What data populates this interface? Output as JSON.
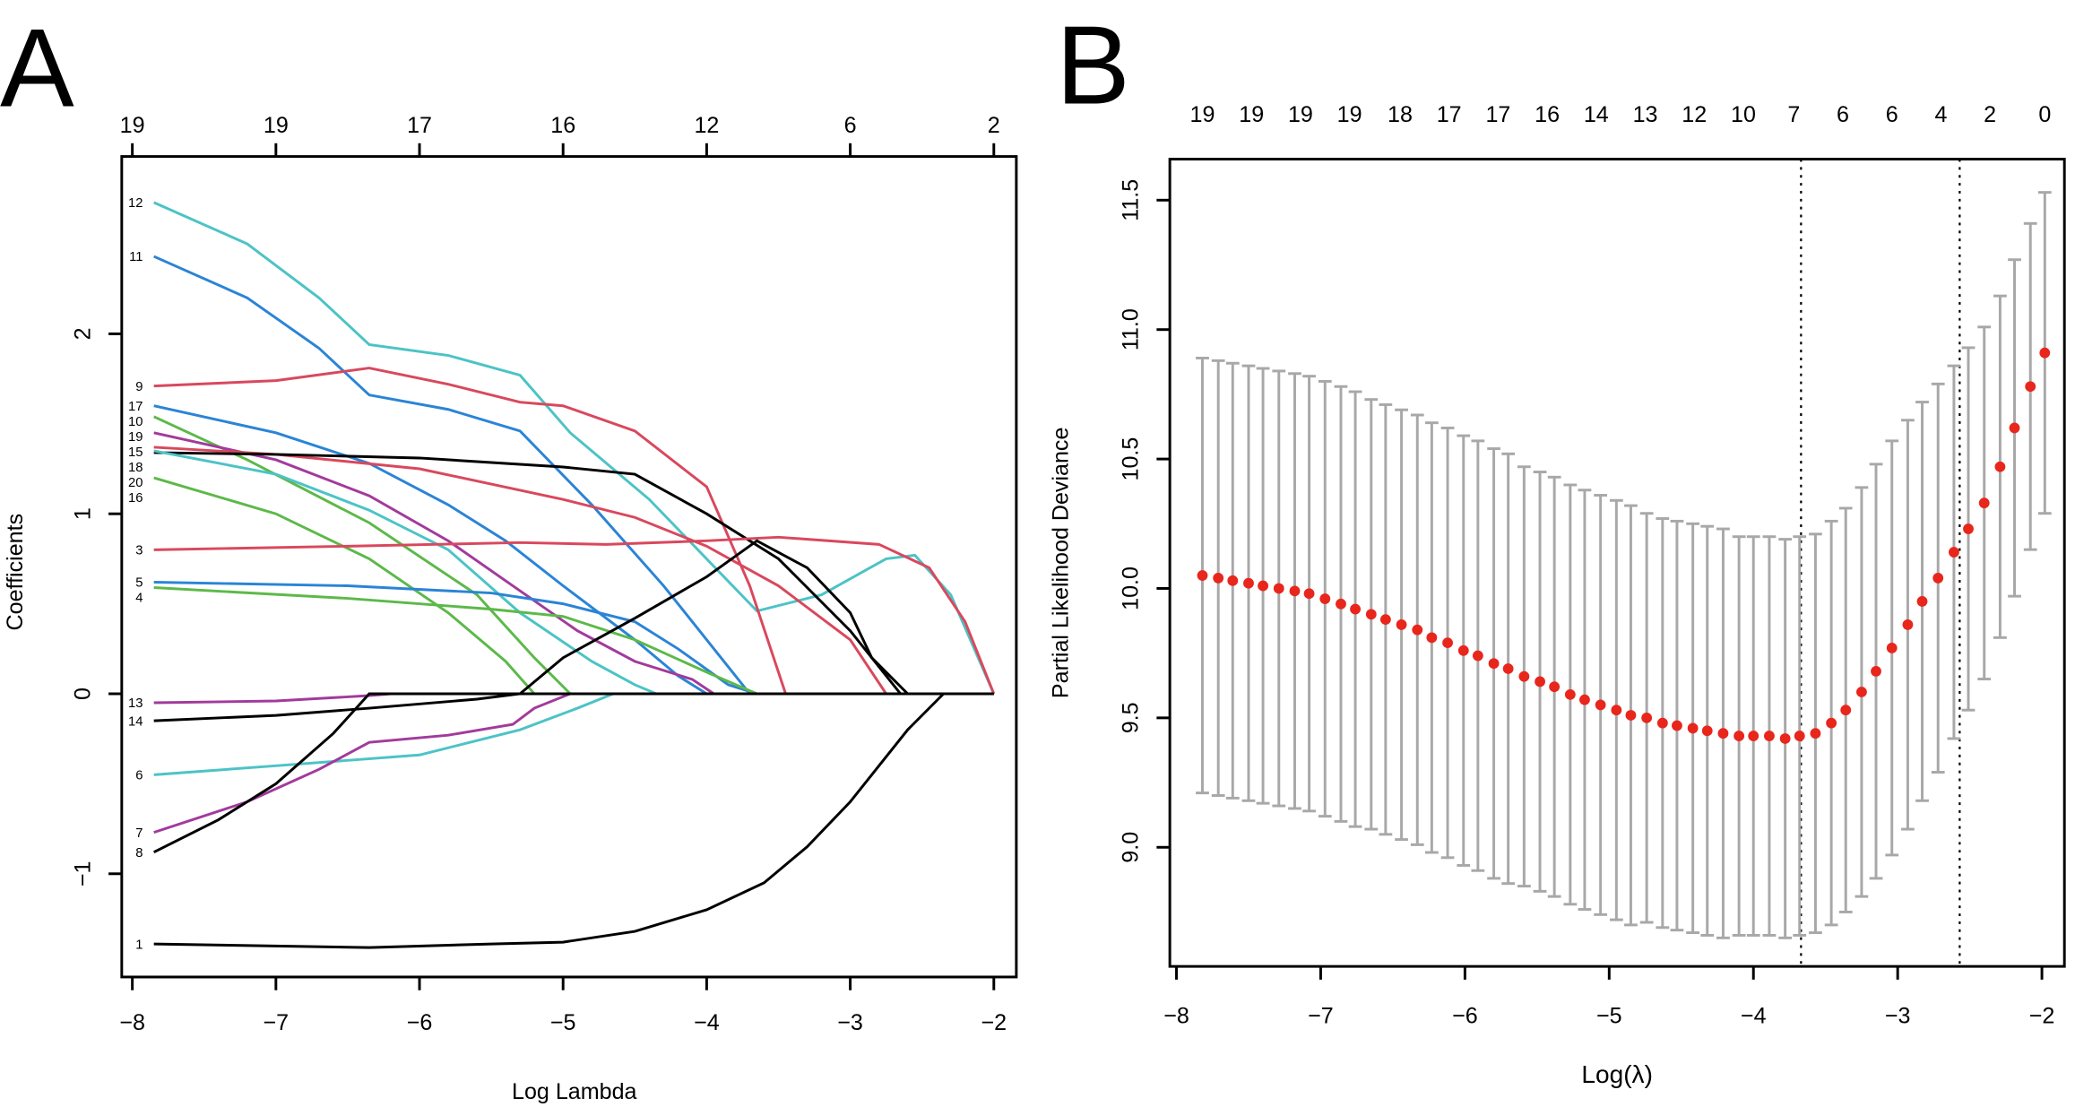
{
  "chart_data": [
    {
      "panel_label": "A",
      "type": "line",
      "xlabel": "Log Lambda",
      "ylabel": "Coefficients",
      "xlim": [
        -8,
        -2
      ],
      "ylim": [
        -1.5,
        2.9
      ],
      "x_ticks": [
        -8,
        -7,
        -6,
        -5,
        -4,
        -3,
        -2
      ],
      "y_ticks": [
        -1,
        0,
        1,
        2
      ],
      "top_axis": {
        "positions": [
          -8,
          -7,
          -6,
          -5,
          -4,
          -3,
          -2
        ],
        "labels": [
          "19",
          "19",
          "17",
          "16",
          "12",
          "6",
          "2"
        ]
      },
      "grid": false,
      "series": [
        {
          "name": "12",
          "color": "#4cc3c6",
          "points": [
            [
              -7.85,
              2.73
            ],
            [
              -7.2,
              2.5
            ],
            [
              -6.7,
              2.2
            ],
            [
              -6.35,
              1.94
            ],
            [
              -5.8,
              1.88
            ],
            [
              -5.3,
              1.77
            ],
            [
              -4.95,
              1.45
            ],
            [
              -4.4,
              1.08
            ],
            [
              -3.65,
              0.46
            ],
            [
              -3.2,
              0.55
            ],
            [
              -2.75,
              0.75
            ],
            [
              -2.55,
              0.77
            ],
            [
              -2.3,
              0.55
            ],
            [
              -2.0,
              0
            ]
          ]
        },
        {
          "name": "11",
          "color": "#2a84d6",
          "points": [
            [
              -7.85,
              2.43
            ],
            [
              -7.2,
              2.2
            ],
            [
              -6.7,
              1.92
            ],
            [
              -6.35,
              1.66
            ],
            [
              -5.8,
              1.58
            ],
            [
              -5.3,
              1.46
            ],
            [
              -4.8,
              1.05
            ],
            [
              -4.3,
              0.6
            ],
            [
              -3.9,
              0.2
            ],
            [
              -3.7,
              0
            ]
          ]
        },
        {
          "name": "9",
          "color": "#d9485d",
          "points": [
            [
              -7.85,
              1.71
            ],
            [
              -7,
              1.74
            ],
            [
              -6.35,
              1.81
            ],
            [
              -5.8,
              1.72
            ],
            [
              -5.3,
              1.62
            ],
            [
              -5.0,
              1.6
            ],
            [
              -4.5,
              1.46
            ],
            [
              -4.0,
              1.15
            ],
            [
              -3.7,
              0.6
            ],
            [
              -3.45,
              0
            ]
          ]
        },
        {
          "name": "17",
          "color": "#2a84d6",
          "points": [
            [
              -7.85,
              1.6
            ],
            [
              -7,
              1.45
            ],
            [
              -6.35,
              1.28
            ],
            [
              -5.8,
              1.05
            ],
            [
              -5.4,
              0.85
            ],
            [
              -5.0,
              0.6
            ],
            [
              -4.5,
              0.3
            ],
            [
              -4.2,
              0.1
            ],
            [
              -4.0,
              0
            ]
          ]
        },
        {
          "name": "10",
          "color": "#5cb949",
          "points": [
            [
              -7.85,
              1.54
            ],
            [
              -7.2,
              1.3
            ],
            [
              -6.35,
              0.95
            ],
            [
              -5.6,
              0.55
            ],
            [
              -5.2,
              0.2
            ],
            [
              -4.95,
              0
            ]
          ]
        },
        {
          "name": "19",
          "color": "#a23a9c",
          "points": [
            [
              -7.85,
              1.45
            ],
            [
              -7,
              1.3
            ],
            [
              -6.35,
              1.1
            ],
            [
              -5.8,
              0.85
            ],
            [
              -5.35,
              0.6
            ],
            [
              -4.9,
              0.35
            ],
            [
              -4.5,
              0.18
            ],
            [
              -4.1,
              0.08
            ],
            [
              -3.95,
              0
            ]
          ]
        },
        {
          "name": "15",
          "color": "#d9485d",
          "points": [
            [
              -7.85,
              1.37
            ],
            [
              -7,
              1.33
            ],
            [
              -6,
              1.25
            ],
            [
              -5,
              1.08
            ],
            [
              -4.5,
              0.98
            ],
            [
              -4,
              0.82
            ],
            [
              -3.5,
              0.6
            ],
            [
              -3.0,
              0.3
            ],
            [
              -2.75,
              0
            ]
          ]
        },
        {
          "name": "20",
          "color": "#000000",
          "points": [
            [
              -7.85,
              1.34
            ],
            [
              -7,
              1.33
            ],
            [
              -6,
              1.31
            ],
            [
              -5,
              1.26
            ],
            [
              -4.5,
              1.22
            ],
            [
              -4,
              1.0
            ],
            [
              -3.5,
              0.75
            ],
            [
              -3.0,
              0.35
            ],
            [
              -2.65,
              0
            ]
          ]
        },
        {
          "name": "18",
          "color": "#4cc3c6",
          "points": [
            [
              -7.85,
              1.35
            ],
            [
              -7,
              1.22
            ],
            [
              -6.35,
              1.02
            ],
            [
              -5.8,
              0.8
            ],
            [
              -5.3,
              0.45
            ],
            [
              -4.8,
              0.18
            ],
            [
              -4.5,
              0.05
            ],
            [
              -4.35,
              0
            ]
          ]
        },
        {
          "name": "16",
          "color": "#5cb949",
          "points": [
            [
              -7.85,
              1.2
            ],
            [
              -7,
              1.0
            ],
            [
              -6.35,
              0.75
            ],
            [
              -5.8,
              0.45
            ],
            [
              -5.4,
              0.18
            ],
            [
              -5.2,
              0
            ]
          ]
        },
        {
          "name": "3",
          "color": "#d9485d",
          "points": [
            [
              -7.85,
              0.8
            ],
            [
              -6.5,
              0.82
            ],
            [
              -5.3,
              0.84
            ],
            [
              -4.7,
              0.83
            ],
            [
              -4,
              0.85
            ],
            [
              -3.5,
              0.87
            ],
            [
              -2.8,
              0.83
            ],
            [
              -2.45,
              0.7
            ],
            [
              -2.2,
              0.4
            ],
            [
              -2.0,
              0
            ]
          ]
        },
        {
          "name": "5",
          "color": "#2a84d6",
          "points": [
            [
              -7.85,
              0.62
            ],
            [
              -6.5,
              0.6
            ],
            [
              -5.5,
              0.56
            ],
            [
              -5,
              0.5
            ],
            [
              -4.5,
              0.4
            ],
            [
              -4.2,
              0.25
            ],
            [
              -3.85,
              0.05
            ],
            [
              -3.65,
              0
            ]
          ]
        },
        {
          "name": "4",
          "color": "#5cb949",
          "points": [
            [
              -7.85,
              0.59
            ],
            [
              -6.5,
              0.53
            ],
            [
              -5.5,
              0.47
            ],
            [
              -5,
              0.43
            ],
            [
              -4.5,
              0.3
            ],
            [
              -4,
              0.12
            ],
            [
              -3.65,
              0
            ]
          ]
        },
        {
          "name": "13",
          "color": "#a23a9c",
          "points": [
            [
              -7.85,
              -0.05
            ],
            [
              -7,
              -0.04
            ],
            [
              -6.35,
              -0.01
            ],
            [
              -6.2,
              0
            ],
            [
              -2.0,
              0
            ]
          ]
        },
        {
          "name": "14",
          "color": "#000000",
          "points": [
            [
              -7.85,
              -0.15
            ],
            [
              -7,
              -0.12
            ],
            [
              -6.35,
              -0.08
            ],
            [
              -5.6,
              -0.03
            ],
            [
              -5.3,
              0
            ],
            [
              -5.0,
              0.2
            ],
            [
              -4.5,
              0.42
            ],
            [
              -4.0,
              0.65
            ],
            [
              -3.65,
              0.85
            ],
            [
              -3.3,
              0.7
            ],
            [
              -3.0,
              0.45
            ],
            [
              -2.85,
              0.2
            ],
            [
              -2.6,
              0
            ]
          ]
        },
        {
          "name": "6",
          "color": "#4cc3c6",
          "points": [
            [
              -7.85,
              -0.45
            ],
            [
              -7,
              -0.4
            ],
            [
              -6,
              -0.34
            ],
            [
              -5.3,
              -0.2
            ],
            [
              -4.9,
              -0.08
            ],
            [
              -4.65,
              0
            ]
          ]
        },
        {
          "name": "7",
          "color": "#a23a9c",
          "points": [
            [
              -7.85,
              -0.77
            ],
            [
              -7.2,
              -0.6
            ],
            [
              -6.7,
              -0.42
            ],
            [
              -6.35,
              -0.27
            ],
            [
              -5.8,
              -0.23
            ],
            [
              -5.35,
              -0.17
            ],
            [
              -5.2,
              -0.08
            ],
            [
              -4.95,
              0
            ]
          ]
        },
        {
          "name": "8",
          "color": "#000000",
          "points": [
            [
              -7.85,
              -0.88
            ],
            [
              -7.4,
              -0.7
            ],
            [
              -7.0,
              -0.5
            ],
            [
              -6.6,
              -0.22
            ],
            [
              -6.35,
              0
            ],
            [
              -2.0,
              0
            ]
          ]
        },
        {
          "name": "1",
          "color": "#000000",
          "points": [
            [
              -7.85,
              -1.39
            ],
            [
              -6.35,
              -1.41
            ],
            [
              -5.5,
              -1.39
            ],
            [
              -5,
              -1.38
            ],
            [
              -4.5,
              -1.32
            ],
            [
              -4,
              -1.2
            ],
            [
              -3.6,
              -1.05
            ],
            [
              -3.3,
              -0.85
            ],
            [
              -3.0,
              -0.6
            ],
            [
              -2.6,
              -0.2
            ],
            [
              -2.35,
              0
            ],
            [
              -2.0,
              0
            ]
          ]
        }
      ]
    },
    {
      "panel_label": "B",
      "type": "scatter",
      "xlabel": "Log(λ)",
      "ylabel": "Partial Likelihood Deviance",
      "xlim": [
        -8,
        -2
      ],
      "ylim": [
        8.6,
        11.6
      ],
      "x_ticks": [
        -8,
        -7,
        -6,
        -5,
        -4,
        -3,
        -2
      ],
      "y_ticks": [
        "9.0",
        "9.5",
        "10.0",
        "10.5",
        "11.0",
        "11.5"
      ],
      "top_axis": {
        "positions": [
          -7.82,
          -7.48,
          -7.14,
          -6.8,
          -6.45,
          -6.11,
          -5.77,
          -5.43,
          -5.09,
          -4.75,
          -4.41,
          -4.07,
          -3.72,
          -3.38,
          -3.04,
          -2.7,
          -2.36,
          -1.98
        ],
        "labels": [
          "19",
          "19",
          "19",
          "19",
          "18",
          "17",
          "17",
          "16",
          "14",
          "13",
          "12",
          "10",
          "7",
          "6",
          "6",
          "4",
          "2",
          "0"
        ]
      },
      "vlines": [
        -3.67,
        -2.57
      ],
      "point_color": "#e8261c",
      "errorbar_color": "#a8a8a8",
      "grid": false,
      "x": [
        -7.82,
        -7.71,
        -7.61,
        -7.5,
        -7.4,
        -7.29,
        -7.18,
        -7.08,
        -6.97,
        -6.86,
        -6.76,
        -6.65,
        -6.55,
        -6.44,
        -6.33,
        -6.23,
        -6.12,
        -6.01,
        -5.91,
        -5.8,
        -5.7,
        -5.59,
        -5.48,
        -5.38,
        -5.27,
        -5.17,
        -5.06,
        -4.95,
        -4.85,
        -4.74,
        -4.63,
        -4.53,
        -4.42,
        -4.32,
        -4.21,
        -4.1,
        -4.0,
        -3.89,
        -3.78,
        -3.68,
        -3.57,
        -3.46,
        -3.36,
        -3.25,
        -3.15,
        -3.04,
        -2.93,
        -2.83,
        -2.72,
        -2.61,
        -2.51,
        -2.4,
        -2.29,
        -2.19,
        -2.08,
        -1.98
      ],
      "mean": [
        10.05,
        10.04,
        10.03,
        10.02,
        10.01,
        10.0,
        9.99,
        9.98,
        9.96,
        9.94,
        9.92,
        9.9,
        9.88,
        9.86,
        9.84,
        9.81,
        9.79,
        9.76,
        9.74,
        9.71,
        9.69,
        9.66,
        9.64,
        9.62,
        9.59,
        9.57,
        9.55,
        9.53,
        9.51,
        9.5,
        9.48,
        9.47,
        9.46,
        9.45,
        9.44,
        9.43,
        9.43,
        9.43,
        9.42,
        9.43,
        9.44,
        9.48,
        9.53,
        9.6,
        9.68,
        9.77,
        9.86,
        9.95,
        10.04,
        10.14,
        10.23,
        10.33,
        10.47,
        10.62,
        10.78,
        10.91
      ],
      "se": [
        0.84,
        0.84,
        0.84,
        0.84,
        0.84,
        0.84,
        0.84,
        0.84,
        0.84,
        0.84,
        0.84,
        0.83,
        0.83,
        0.83,
        0.83,
        0.83,
        0.83,
        0.83,
        0.83,
        0.83,
        0.83,
        0.81,
        0.81,
        0.81,
        0.81,
        0.81,
        0.81,
        0.81,
        0.81,
        0.79,
        0.79,
        0.79,
        0.79,
        0.79,
        0.79,
        0.77,
        0.77,
        0.77,
        0.77,
        0.77,
        0.77,
        0.78,
        0.78,
        0.79,
        0.8,
        0.8,
        0.79,
        0.77,
        0.75,
        0.72,
        0.7,
        0.68,
        0.66,
        0.65,
        0.63,
        0.62
      ]
    }
  ]
}
